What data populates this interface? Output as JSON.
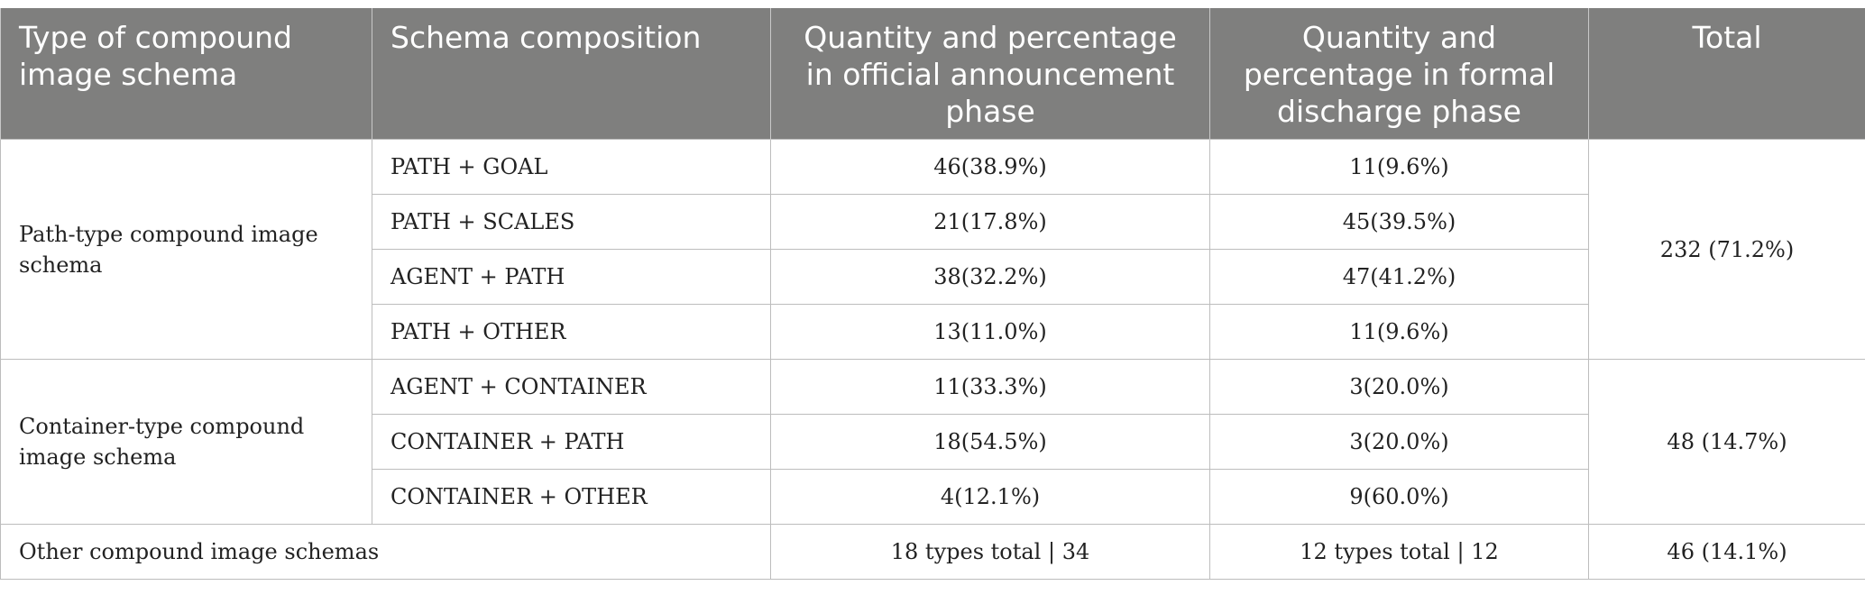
{
  "headers": [
    "Type of compound image schema",
    "Schema composition",
    "Quantity and percentage in official announcement phase",
    "Quantity and percentage in formal discharge phase",
    "Total"
  ],
  "groups": [
    {
      "type": "Path-type compound image schema",
      "total": "232 (71.2%)",
      "rows": [
        {
          "composition": "PATH + GOAL",
          "announcement": "46(38.9%)",
          "discharge": "11(9.6%)"
        },
        {
          "composition": "PATH + SCALES",
          "announcement": "21(17.8%)",
          "discharge": "45(39.5%)"
        },
        {
          "composition": "AGENT + PATH",
          "announcement": "38(32.2%)",
          "discharge": "47(41.2%)"
        },
        {
          "composition": "PATH + OTHER",
          "announcement": "13(11.0%)",
          "discharge": "11(9.6%)"
        }
      ]
    },
    {
      "type": "Container-type compound image schema",
      "total": "48 (14.7%)",
      "rows": [
        {
          "composition": "AGENT + CONTAINER",
          "announcement": "11(33.3%)",
          "discharge": "3(20.0%)"
        },
        {
          "composition": "CONTAINER + PATH",
          "announcement": "18(54.5%)",
          "discharge": "3(20.0%)"
        },
        {
          "composition": "CONTAINER + OTHER",
          "announcement": "4(12.1%)",
          "discharge": "9(60.0%)"
        }
      ]
    }
  ],
  "other_row": {
    "type": "Other compound image schemas",
    "announcement": "18 types total | 34",
    "discharge": "12 types total | 12",
    "total": "46 (14.1%)"
  }
}
